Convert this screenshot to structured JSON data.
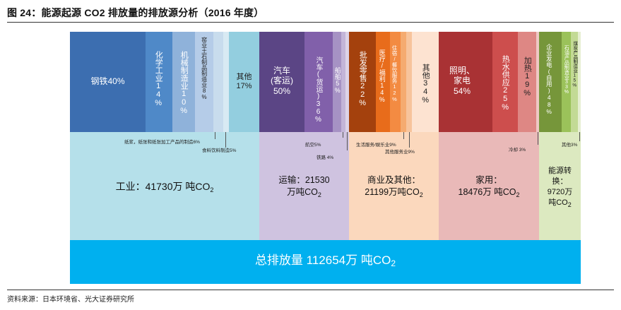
{
  "title": "图 24：能源起源 CO2 排放量的排放源分析（2016 年度）",
  "source": "资料来源：日本环境省、光大证券研究所",
  "total": {
    "label": "总排放量 112654万 吨CO",
    "sub": "2"
  },
  "sectors": {
    "industry": {
      "label_line1": "工业：41730万 吨CO",
      "sub": "2"
    },
    "transport": {
      "label_line1": "运输：21530",
      "label_line2": "万吨CO",
      "sub": "2"
    },
    "commercial": {
      "label_line1": "商业及其他：",
      "label_line2": "21199万吨CO",
      "sub": "2"
    },
    "household": {
      "label_line1": "家用：",
      "label_line2": "18476万 吨CO",
      "sub": "2"
    },
    "energy": {
      "label_line1": "能源转",
      "label_line2": "换：",
      "label_line3": "9720万",
      "label_line4": "吨CO",
      "sub": "2"
    }
  },
  "industry_items": {
    "steel": "钢铁40%",
    "chemical": "化学工业14%",
    "machinery": "机械制造业10%",
    "ceramic": "窑业土石制品制造业8%",
    "other": "其他",
    "other_pct": "17%",
    "paper_ann": "纸浆，纸张和纸张加工产品的制造6%",
    "food_ann": "食料饮料制造5%"
  },
  "transport_items": {
    "car_l1": "汽车",
    "car_l2": "(客运)",
    "car_l3": "50%",
    "truck": "汽车(货运)36%",
    "ship": "船舶5%",
    "air_ann": "航空5%",
    "rail_ann": "铁路 4%"
  },
  "commercial_items": {
    "retail": "批发零售22%",
    "medical": "医疗/福利14%",
    "hotel": "住宿/餐饮服务12%",
    "other": "其他34%",
    "life_ann": "生活服务/娱乐业9%",
    "otherserv_ann": "其他服务业9%"
  },
  "household_items": {
    "light_l1": "照明、",
    "light_l2": "家电",
    "light_l3": "54%",
    "water": "热水供应25%",
    "heat": "加热19%",
    "cool_ann": "冷却 3%"
  },
  "energy_items": {
    "power": "企业发电(自用)48%",
    "oil": "石油产品制造业33%",
    "coal": "煤炭产品制造业15%",
    "other_ann": "其他3%"
  },
  "colors": {
    "industry_bg": "#b5e0ea",
    "transport_bg": "#cfc3e0",
    "commercial_bg": "#fbd8bd",
    "household_bg": "#e9b9b8",
    "energy_bg": "#dce9c0",
    "total_bg": "#00b0ef"
  }
}
